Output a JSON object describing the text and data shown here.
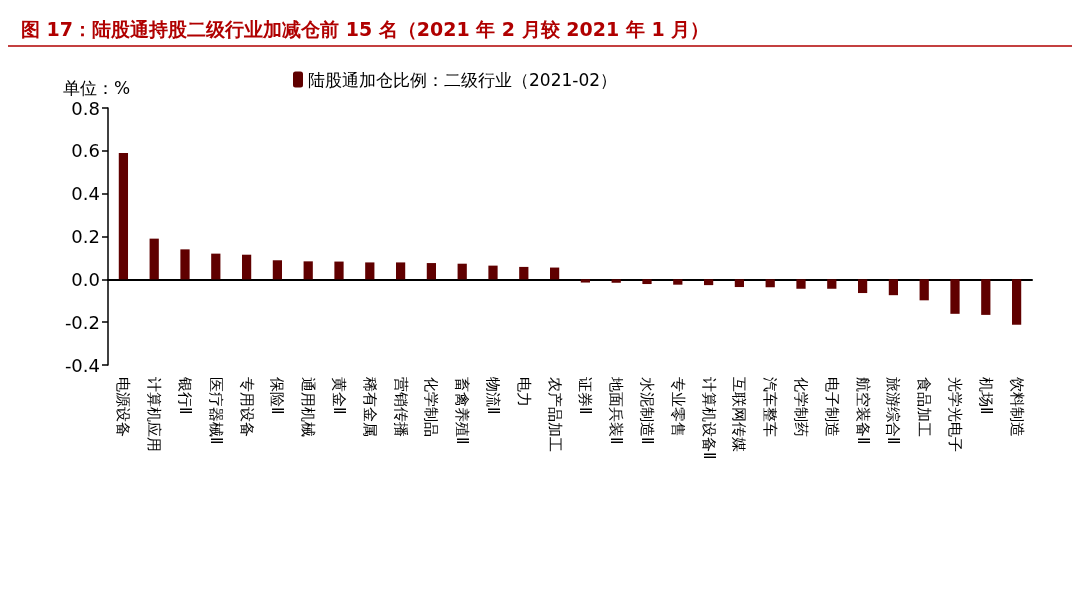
{
  "chart_data": {
    "type": "bar",
    "title": "图 17：陆股通持股二级行业加减仓前 15 名（2021 年 2 月较 2021 年 1 月）",
    "ylabel": "单位：%",
    "categories": [
      "电源设备",
      "计算机应用",
      "银行Ⅱ",
      "医疗器械Ⅱ",
      "专用设备",
      "保险Ⅱ",
      "通用机械",
      "黄金Ⅱ",
      "稀有金属",
      "营销传播",
      "化学制品",
      "畜禽养殖Ⅱ",
      "物流Ⅱ",
      "电力",
      "农产品加工",
      "证券Ⅱ",
      "地面兵装Ⅱ",
      "水泥制造Ⅱ",
      "专业零售",
      "计算机设备Ⅱ",
      "互联网传媒",
      "汽车整车",
      "化学制药",
      "电子制造",
      "航空装备Ⅱ",
      "旅游综合Ⅱ",
      "食品加工",
      "光学光电子",
      "机场Ⅱ",
      "饮料制造"
    ],
    "series": [
      {
        "name": "陆股通加仓比例：二级行业（2021-02）",
        "color": "#600000",
        "values": [
          0.59,
          0.19,
          0.14,
          0.12,
          0.115,
          0.089,
          0.084,
          0.083,
          0.079,
          0.079,
          0.076,
          0.073,
          0.064,
          0.058,
          0.055,
          -0.015,
          -0.016,
          -0.022,
          -0.025,
          -0.027,
          -0.036,
          -0.037,
          -0.044,
          -0.044,
          -0.064,
          -0.074,
          -0.098,
          -0.161,
          -0.166,
          -0.212
        ]
      }
    ],
    "ylim": [
      -0.4,
      0.8
    ],
    "yticks": [
      -0.4,
      -0.2,
      {
        "value": 0,
        "label": "0.0"
      },
      0.2,
      0.4,
      0.6,
      0.8
    ],
    "legend": "top"
  }
}
